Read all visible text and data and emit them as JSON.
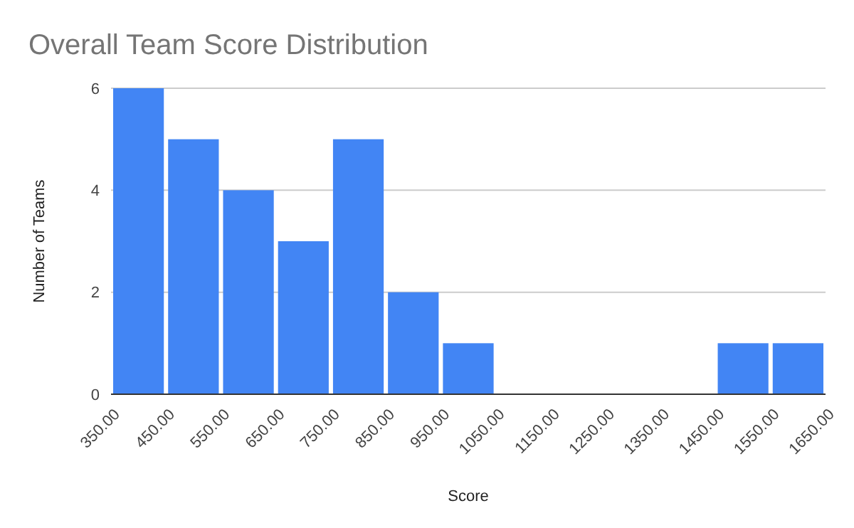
{
  "chart_data": {
    "type": "histogram",
    "title": "Overall Team Score Distribution",
    "xlabel": "Score",
    "ylabel": "Number of Teams",
    "bins": [
      350,
      450,
      550,
      650,
      750,
      850,
      950,
      1050,
      1150,
      1250,
      1350,
      1450,
      1550,
      1650
    ],
    "values": [
      6,
      5,
      4,
      3,
      5,
      2,
      1,
      0,
      0,
      0,
      0,
      1,
      1
    ],
    "color": "#4285f4",
    "xlim": [
      350,
      1650
    ],
    "xticks": [
      {
        "value": 350,
        "label": "350.00"
      },
      {
        "value": 450,
        "label": "450.00"
      },
      {
        "value": 550,
        "label": "550.00"
      },
      {
        "value": 650,
        "label": "650.00"
      },
      {
        "value": 750,
        "label": "750.00"
      },
      {
        "value": 850,
        "label": "850.00"
      },
      {
        "value": 950,
        "label": "950.00"
      },
      {
        "value": 1050,
        "label": "1050.00"
      },
      {
        "value": 1150,
        "label": "1150.00"
      },
      {
        "value": 1250,
        "label": "1250.00"
      },
      {
        "value": 1350,
        "label": "1350.00"
      },
      {
        "value": 1450,
        "label": "1450.00"
      },
      {
        "value": 1550,
        "label": "1550.00"
      },
      {
        "value": 1650,
        "label": "1650.00"
      }
    ],
    "ylim": [
      0,
      6
    ],
    "yticks": [
      0,
      2,
      4,
      6
    ],
    "grid": "y"
  }
}
